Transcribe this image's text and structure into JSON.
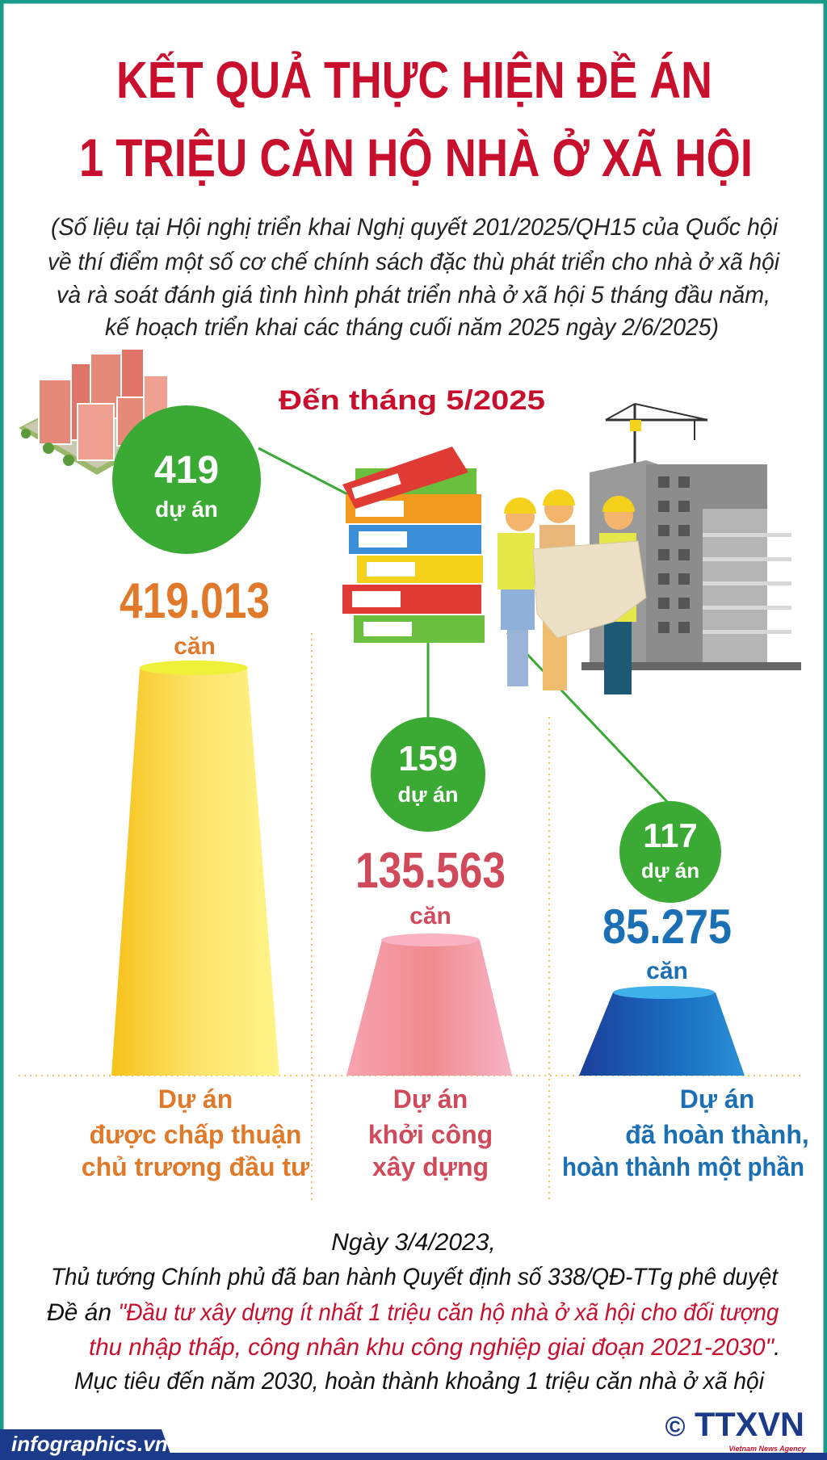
{
  "header": {
    "title_line1": "KẾT QUẢ THỰC HIỆN ĐỀ ÁN",
    "title_line2": "1 TRIỆU CĂN HỘ NHÀ Ở XÃ HỘI",
    "subtitle_lines": [
      "(Số liệu tại Hội nghị triển khai Nghị quyết 201/2025/QH15 của Quốc hội",
      "về thí điểm một số cơ chế chính sách đặc thù phát triển cho nhà ở xã hội",
      "và rà soát đánh giá tình hình phát triển nhà ở xã hội 5 tháng đầu năm,",
      "kế hoạch triển khai các tháng cuối năm 2025 ngày 2/6/2025)"
    ]
  },
  "period_label": "Đến tháng 5/2025",
  "colors": {
    "title_red": "#c8102e",
    "green": "#3aaa35",
    "orange": "#e07a2a",
    "pink": "#d14a5c",
    "blue": "#1a6fb5",
    "border_teal": "#1a9a8a"
  },
  "stats": [
    {
      "projects": "419",
      "projects_unit": "dự án",
      "units": "419.013",
      "units_label": "căn",
      "label_lines": [
        "Dự án",
        "được chấp thuận",
        "chủ trương đầu tư"
      ]
    },
    {
      "projects": "159",
      "projects_unit": "dự án",
      "units": "135.563",
      "units_label": "căn",
      "label_lines": [
        "Dự án",
        "khởi công",
        "xây dựng"
      ]
    },
    {
      "projects": "117",
      "projects_unit": "dự án",
      "units": "85.275",
      "units_label": "căn",
      "label_lines": [
        "Dự án",
        "đã hoàn thành,",
        "hoàn thành một phần"
      ]
    }
  ],
  "note": {
    "line1": "Ngày 3/4/2023,",
    "line2": "Thủ tướng Chính phủ đã ban hành Quyết định số 338/QĐ-TTg phê duyệt",
    "line3_prefix": "Đề án ",
    "line3_quote": "\"Đầu tư xây dựng ít nhất 1 triệu căn hộ nhà ở xã hội cho đối tượng",
    "line4_quote": "thu nhập thấp, công nhân khu công nghiệp giai đoạn 2021-2030\"",
    "line4_suffix": ".",
    "line5": "Mục tiêu đến năm 2030, hoàn thành khoảng 1 triệu căn nhà ở xã hội"
  },
  "footer": {
    "site": "infographics.vn",
    "copyright_symbol": "©",
    "agency_logo": "TTXVN",
    "agency_tagline": "Vietnam News Agency"
  }
}
